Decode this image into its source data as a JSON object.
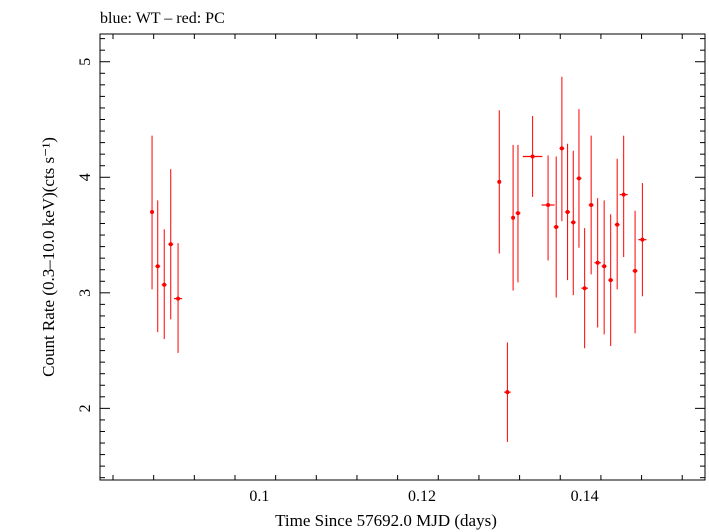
{
  "chart_data": {
    "type": "scatter",
    "title": "blue: WT – red: PC",
    "xlabel": "Time Since 57692.0 MJD (days)",
    "ylabel": "Count Rate (0.3–10.0 keV)(cts s⁻¹)",
    "xlim": [
      0.0804,
      0.1548
    ],
    "ylim": [
      1.38,
      5.24
    ],
    "x_ticks": [
      0.1,
      0.12,
      0.14
    ],
    "x_tick_labels": [
      "0.1",
      "0.12",
      "0.14"
    ],
    "y_ticks": [
      2,
      3,
      4,
      5
    ],
    "y_tick_labels": [
      "2",
      "3",
      "4",
      "5"
    ],
    "grid": false,
    "series": [
      {
        "name": "PC",
        "color": "#ff0000",
        "points": [
          {
            "x": 0.0868,
            "y": 3.7,
            "xerr": 0.0002,
            "ylo": 3.03,
            "yhi": 4.36
          },
          {
            "x": 0.0875,
            "y": 3.23,
            "xerr": 0.0003,
            "ylo": 2.66,
            "yhi": 3.8
          },
          {
            "x": 0.0883,
            "y": 3.07,
            "xerr": 0.0003,
            "ylo": 2.6,
            "yhi": 3.55
          },
          {
            "x": 0.0891,
            "y": 3.42,
            "xerr": 0.0003,
            "ylo": 2.77,
            "yhi": 4.07
          },
          {
            "x": 0.09,
            "y": 2.95,
            "xerr": 0.0005,
            "ylo": 2.48,
            "yhi": 3.43
          },
          {
            "x": 0.1295,
            "y": 3.96,
            "xerr": 0.0002,
            "ylo": 3.34,
            "yhi": 4.58
          },
          {
            "x": 0.1305,
            "y": 2.14,
            "xerr": 0.0004,
            "ylo": 1.71,
            "yhi": 2.57
          },
          {
            "x": 0.1312,
            "y": 3.65,
            "xerr": 0.0002,
            "ylo": 3.02,
            "yhi": 4.28
          },
          {
            "x": 0.1318,
            "y": 3.69,
            "xerr": 0.0003,
            "ylo": 3.09,
            "yhi": 4.28
          },
          {
            "x": 0.1336,
            "y": 4.18,
            "xerr": 0.0012,
            "ylo": 3.83,
            "yhi": 4.53
          },
          {
            "x": 0.1355,
            "y": 3.76,
            "xerr": 0.0008,
            "ylo": 3.28,
            "yhi": 4.19
          },
          {
            "x": 0.1365,
            "y": 3.57,
            "xerr": 0.0003,
            "ylo": 2.96,
            "yhi": 4.18
          },
          {
            "x": 0.1372,
            "y": 4.25,
            "xerr": 0.0003,
            "ylo": 3.62,
            "yhi": 4.87
          },
          {
            "x": 0.1379,
            "y": 3.7,
            "xerr": 0.0003,
            "ylo": 3.11,
            "yhi": 4.29
          },
          {
            "x": 0.1386,
            "y": 3.61,
            "xerr": 0.0003,
            "ylo": 2.98,
            "yhi": 4.23
          },
          {
            "x": 0.1393,
            "y": 3.99,
            "xerr": 0.0003,
            "ylo": 3.39,
            "yhi": 4.59
          },
          {
            "x": 0.14,
            "y": 3.04,
            "xerr": 0.0004,
            "ylo": 2.52,
            "yhi": 3.56
          },
          {
            "x": 0.1408,
            "y": 3.76,
            "xerr": 0.0003,
            "ylo": 3.16,
            "yhi": 4.36
          },
          {
            "x": 0.1416,
            "y": 3.26,
            "xerr": 0.0004,
            "ylo": 2.7,
            "yhi": 3.82
          },
          {
            "x": 0.1424,
            "y": 3.23,
            "xerr": 0.0003,
            "ylo": 2.64,
            "yhi": 3.8
          },
          {
            "x": 0.1432,
            "y": 3.11,
            "xerr": 0.0003,
            "ylo": 2.54,
            "yhi": 3.68
          },
          {
            "x": 0.144,
            "y": 3.59,
            "xerr": 0.0003,
            "ylo": 3.03,
            "yhi": 4.16
          },
          {
            "x": 0.1448,
            "y": 3.85,
            "xerr": 0.0005,
            "ylo": 3.31,
            "yhi": 4.36
          },
          {
            "x": 0.1462,
            "y": 3.19,
            "xerr": 0.0003,
            "ylo": 2.65,
            "yhi": 3.71
          },
          {
            "x": 0.1471,
            "y": 3.46,
            "xerr": 0.0005,
            "ylo": 2.97,
            "yhi": 3.95
          }
        ]
      }
    ]
  }
}
